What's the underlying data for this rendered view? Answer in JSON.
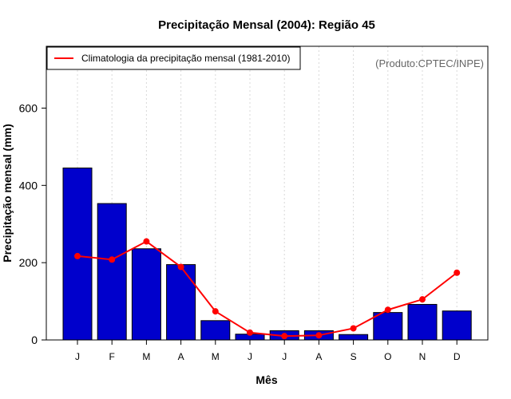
{
  "chart_data": {
    "type": "bar",
    "title": "Precipitação Mensal (2004): Região 45",
    "xlabel": "Mês",
    "ylabel": "Precipitação mensal (mm)",
    "ylim": [
      0,
      760
    ],
    "yticks": [
      0,
      200,
      400,
      600
    ],
    "categories": [
      "J",
      "F",
      "M",
      "A",
      "M",
      "J",
      "J",
      "A",
      "S",
      "O",
      "N",
      "D"
    ],
    "series": [
      {
        "name": "Precipitação mensal 2004",
        "type": "bar",
        "color": "#0000CC",
        "values": [
          445,
          353,
          236,
          195,
          50,
          15,
          24,
          24,
          14,
          71,
          92,
          75
        ]
      },
      {
        "name": "Climatologia da precipitação mensal (1981-2010)",
        "type": "line",
        "color": "#FF0000",
        "values": [
          217,
          208,
          255,
          189,
          74,
          19,
          10,
          12,
          30,
          78,
          105,
          174
        ]
      }
    ],
    "legend": {
      "position": "top-left",
      "entries": [
        "Climatologia da precipitação mensal (1981-2010)"
      ]
    },
    "grid": "vertical-dotted",
    "annotation": "(Produto:CPTEC/INPE)"
  }
}
